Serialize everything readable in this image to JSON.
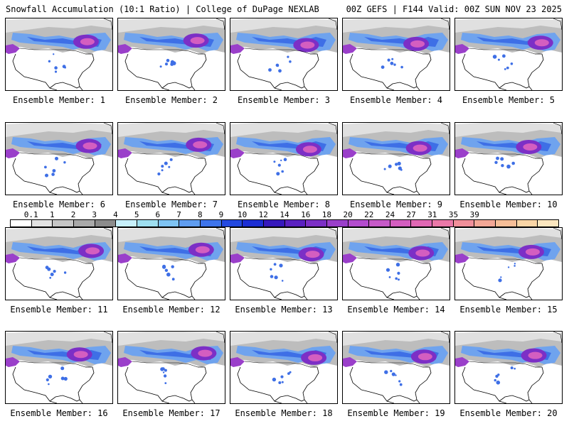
{
  "header": {
    "left": "Snowfall Accumulation (10:1 Ratio) | College of DuPage NEXLAB",
    "right": "00Z GEFS | F144 Valid: 00Z SUN NOV 23 2025"
  },
  "panels": [
    {
      "label": "Ensemble Member: 1"
    },
    {
      "label": "Ensemble Member: 2"
    },
    {
      "label": "Ensemble Member: 3"
    },
    {
      "label": "Ensemble Member: 4"
    },
    {
      "label": "Ensemble Member: 5"
    },
    {
      "label": "Ensemble Member: 6"
    },
    {
      "label": "Ensemble Member: 7"
    },
    {
      "label": "Ensemble Member: 8"
    },
    {
      "label": "Ensemble Member: 9"
    },
    {
      "label": "Ensemble Member: 10"
    },
    {
      "label": "Ensemble Member: 11"
    },
    {
      "label": "Ensemble Member: 12"
    },
    {
      "label": "Ensemble Member: 13"
    },
    {
      "label": "Ensemble Member: 14"
    },
    {
      "label": "Ensemble Member: 15"
    },
    {
      "label": "Ensemble Member: 16"
    },
    {
      "label": "Ensemble Member: 17"
    },
    {
      "label": "Ensemble Member: 18"
    },
    {
      "label": "Ensemble Member: 19"
    },
    {
      "label": "Ensemble Member: 20"
    }
  ],
  "colorbar": {
    "labels": [
      "0.1",
      "1",
      "2",
      "3",
      "4",
      "5",
      "6",
      "7",
      "8",
      "9",
      "10",
      "12",
      "14",
      "16",
      "18",
      "20",
      "22",
      "24",
      "27",
      "31",
      "35",
      "39"
    ],
    "colors": [
      "#ffffff",
      "#e2e2e2",
      "#c6c6c6",
      "#a9a9a9",
      "#8c8c8c",
      "#c7f0fb",
      "#9edff0",
      "#7ec3f2",
      "#5f9df0",
      "#3e74eb",
      "#2349e0",
      "#1c2ed4",
      "#3618bc",
      "#5a20c0",
      "#7c2fc6",
      "#9a3fca",
      "#b34cce",
      "#c65ac8",
      "#d45ec0",
      "#e068b4",
      "#ea78a8",
      "#f08f9a",
      "#f3a796",
      "#f6be98",
      "#f9d5a6",
      "#fbe6bf"
    ]
  }
}
